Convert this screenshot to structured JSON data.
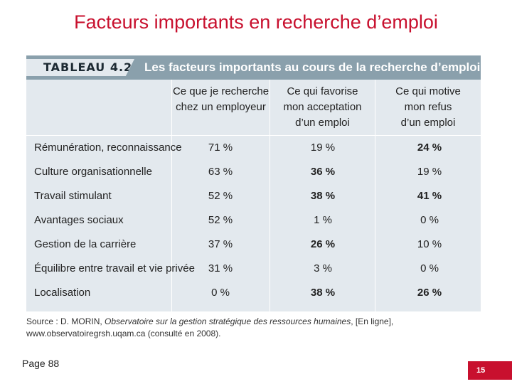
{
  "slide": {
    "title": "Facteurs importants en recherche d’emploi",
    "page_ref": "Page 88",
    "page_number": "15"
  },
  "table": {
    "tag": "TABLEAU 4.2",
    "title": "Les facteurs importants au cours de la recherche d’emploi",
    "columns": [
      {
        "line1": "Ce que je recherche",
        "line2": "chez un employeur",
        "line3": ""
      },
      {
        "line1": "Ce qui favorise",
        "line2": "mon acceptation",
        "line3": "d’un emploi"
      },
      {
        "line1": "Ce qui motive",
        "line2": "mon refus",
        "line3": "d’un emploi"
      }
    ],
    "rows": [
      {
        "label": "Rémunération, reconnaissance",
        "values": [
          "71 %",
          "19 %",
          "24 %"
        ]
      },
      {
        "label": "Culture organisationnelle",
        "values": [
          "63 %",
          "36 %",
          "19 %"
        ]
      },
      {
        "label": "Travail stimulant",
        "values": [
          "52 %",
          "38 %",
          "41 %"
        ]
      },
      {
        "label": "Avantages sociaux",
        "values": [
          "52 %",
          "1 %",
          "0 %"
        ]
      },
      {
        "label": "Gestion de la carrière",
        "values": [
          "37 %",
          "26 %",
          "10 %"
        ]
      },
      {
        "label": "Équilibre entre travail et vie privée",
        "values": [
          "31 %",
          "3 %",
          "0 %"
        ]
      },
      {
        "label": "Localisation",
        "values": [
          "0 %",
          "38 %",
          "26 %"
        ]
      }
    ],
    "source": {
      "prefix": "Source : D. MORIN, ",
      "italic": "Observatoire sur la gestion stratégique des ressources humaines",
      "suffix": ", [En ligne], www.observatoiregrsh.uqam.ca (consulté en 2008)."
    }
  }
}
